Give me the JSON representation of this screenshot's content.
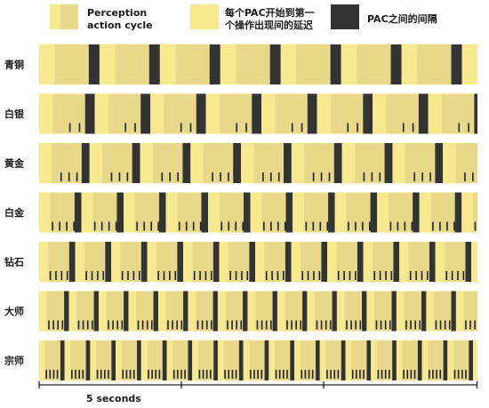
{
  "colors": {
    "perception_action_cycle": "#e8d98a",
    "perception_action_cycle_dark": "#e2d37f",
    "latency": "#f7e98f",
    "gap": "#333333",
    "tick": "#222222",
    "axis": "#222222"
  },
  "legend": {
    "items": [
      {
        "id": "pac",
        "label_line1": "Perception",
        "label_line2": "action cycle",
        "color_key": "perception_action_cycle"
      },
      {
        "id": "latency",
        "label_line1": "每个PAC开始到第一",
        "label_line2": "个操作出现间的延迟",
        "color_key": "latency"
      },
      {
        "id": "gap",
        "label_line1": "PAC之间的间隔",
        "label_line2": "",
        "color_key": "gap"
      }
    ]
  },
  "scale": {
    "label": "5 seconds"
  },
  "rows": [
    {
      "label": "青铜",
      "cycles": [
        {
          "latency_s": 0.55,
          "pac_s": 1.75,
          "gap_s": 0.38,
          "actions": []
        },
        {
          "latency_s": 0.55,
          "pac_s": 1.75,
          "gap_s": 0.38,
          "actions": []
        },
        {
          "latency_s": 0.55,
          "pac_s": 1.75,
          "gap_s": 0.38,
          "actions": []
        }
      ]
    },
    {
      "label": "白银",
      "cycles": [
        {
          "latency_s": 0.48,
          "pac_s": 1.62,
          "gap_s": 0.34,
          "actions": [
            0.58,
            0.92,
            1.26
          ]
        },
        {
          "latency_s": 0.48,
          "pac_s": 1.62,
          "gap_s": 0.34,
          "actions": [
            0.58,
            0.92,
            1.26
          ]
        },
        {
          "latency_s": 0.48,
          "pac_s": 1.62,
          "gap_s": 0.34,
          "actions": [
            0.58,
            0.92,
            1.26
          ]
        }
      ]
    },
    {
      "label": "黄金",
      "cycles": [
        {
          "latency_s": 0.45,
          "pac_s": 1.5,
          "gap_s": 0.28,
          "actions": [
            0.3,
            0.58,
            0.86,
            1.14
          ]
        },
        {
          "latency_s": 0.45,
          "pac_s": 1.5,
          "gap_s": 0.28,
          "actions": [
            0.3,
            0.58,
            0.86,
            1.14
          ]
        },
        {
          "latency_s": 0.45,
          "pac_s": 1.5,
          "gap_s": 0.28,
          "actions": [
            0.3,
            0.58,
            0.86,
            1.14
          ]
        }
      ]
    },
    {
      "label": "白金",
      "cycles": [
        {
          "latency_s": 0.4,
          "pac_s": 1.25,
          "gap_s": 0.24,
          "actions": [
            0.05,
            0.3,
            0.55,
            0.8,
            1.05
          ]
        },
        {
          "latency_s": 0.4,
          "pac_s": 1.25,
          "gap_s": 0.24,
          "actions": [
            0.05,
            0.3,
            0.55,
            0.8,
            1.05
          ]
        },
        {
          "latency_s": 0.4,
          "pac_s": 1.25,
          "gap_s": 0.24,
          "actions": [
            0.05,
            0.3,
            0.55,
            0.8,
            1.05
          ]
        },
        {
          "latency_s": 0.4,
          "pac_s": 1.25,
          "gap_s": 0.24,
          "actions": [
            0.05,
            0.3,
            0.55,
            0.8,
            1.05
          ]
        }
      ]
    },
    {
      "label": "钻石",
      "cycles": [
        {
          "latency_s": 0.33,
          "pac_s": 1.06,
          "gap_s": 0.21,
          "actions": [
            0.04,
            0.24,
            0.44,
            0.64,
            0.84,
            1.0
          ]
        },
        {
          "latency_s": 0.33,
          "pac_s": 1.06,
          "gap_s": 0.21,
          "actions": [
            0.04,
            0.24,
            0.44,
            0.64,
            0.84,
            1.0
          ]
        },
        {
          "latency_s": 0.33,
          "pac_s": 1.06,
          "gap_s": 0.21,
          "actions": [
            0.04,
            0.24,
            0.44,
            0.64,
            0.84,
            1.0
          ]
        },
        {
          "latency_s": 0.33,
          "pac_s": 1.06,
          "gap_s": 0.21,
          "actions": [
            0.04,
            0.24,
            0.44,
            0.64,
            0.84,
            1.0
          ]
        }
      ]
    },
    {
      "label": "大师",
      "cycles": [
        {
          "latency_s": 0.27,
          "pac_s": 0.88,
          "gap_s": 0.17,
          "actions": [
            0.05,
            0.21,
            0.37,
            0.53,
            0.69,
            0.84
          ]
        },
        {
          "latency_s": 0.27,
          "pac_s": 0.88,
          "gap_s": 0.17,
          "actions": [
            0.05,
            0.21,
            0.37,
            0.53,
            0.69,
            0.84
          ]
        },
        {
          "latency_s": 0.27,
          "pac_s": 0.88,
          "gap_s": 0.17,
          "actions": [
            0.05,
            0.21,
            0.37,
            0.53,
            0.69,
            0.84
          ]
        },
        {
          "latency_s": 0.27,
          "pac_s": 0.88,
          "gap_s": 0.17,
          "actions": [
            0.05,
            0.21,
            0.37,
            0.53,
            0.69,
            0.84
          ]
        },
        {
          "latency_s": 0.27,
          "pac_s": 0.88,
          "gap_s": 0.17,
          "actions": [
            0.05,
            0.21,
            0.37,
            0.53,
            0.69,
            0.84
          ]
        }
      ]
    },
    {
      "label": "宗师",
      "cycles": [
        {
          "latency_s": 0.21,
          "pac_s": 0.75,
          "gap_s": 0.15,
          "actions": [
            0.02,
            0.15,
            0.28,
            0.41,
            0.54,
            0.67,
            0.73
          ]
        },
        {
          "latency_s": 0.21,
          "pac_s": 0.75,
          "gap_s": 0.15,
          "actions": [
            0.02,
            0.15,
            0.28,
            0.41,
            0.54,
            0.67,
            0.73
          ]
        },
        {
          "latency_s": 0.21,
          "pac_s": 0.75,
          "gap_s": 0.15,
          "actions": [
            0.02,
            0.15,
            0.28,
            0.41,
            0.54,
            0.67,
            0.73
          ]
        },
        {
          "latency_s": 0.21,
          "pac_s": 0.75,
          "gap_s": 0.15,
          "actions": [
            0.02,
            0.15,
            0.28,
            0.41,
            0.54,
            0.67,
            0.73
          ]
        },
        {
          "latency_s": 0.21,
          "pac_s": 0.75,
          "gap_s": 0.15,
          "actions": [
            0.02,
            0.15,
            0.28,
            0.41,
            0.54,
            0.67,
            0.73
          ]
        },
        {
          "latency_s": 0.21,
          "pac_s": 0.75,
          "gap_s": 0.15,
          "actions": [
            0.02,
            0.15,
            0.28,
            0.41,
            0.54,
            0.67,
            0.73
          ]
        }
      ]
    }
  ]
}
